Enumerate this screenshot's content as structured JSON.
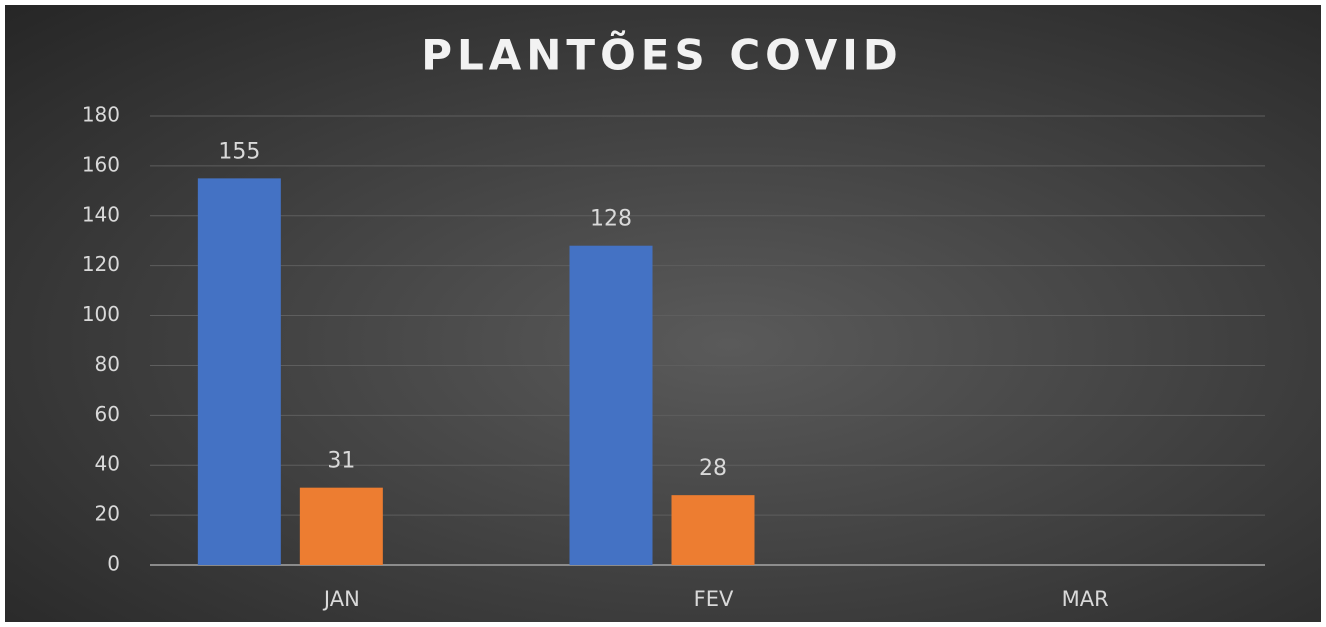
{
  "chart_data": {
    "type": "bar",
    "title": "PLANTÕES COVID",
    "categories": [
      "JAN",
      "FEV",
      "MAR"
    ],
    "series": [
      {
        "color": "#4472c4",
        "values": [
          155,
          128,
          null
        ]
      },
      {
        "color": "#ed7d31",
        "values": [
          31,
          28,
          null
        ]
      }
    ],
    "ylim": [
      0,
      180
    ],
    "yticks": [
      0,
      20,
      40,
      60,
      80,
      100,
      120,
      140,
      160,
      180
    ],
    "grid": true
  }
}
